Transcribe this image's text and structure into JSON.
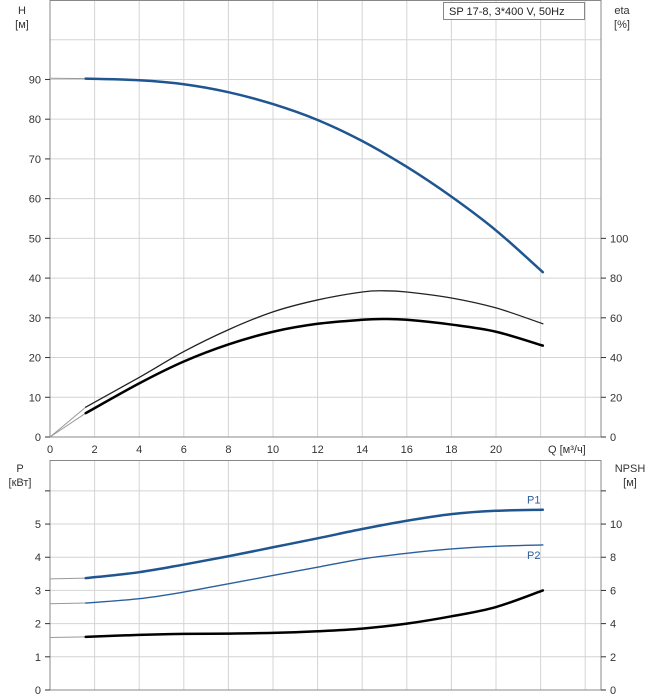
{
  "chart_data": [
    {
      "type": "line",
      "title": "SP 17-8, 3*400 V, 50Hz",
      "xlabel": "Q [м³/ч]",
      "ylabel": "H [м]",
      "ylabel_right": "eta [%]",
      "y_label_parts": [
        "H",
        "[м]"
      ],
      "y2_label_parts": [
        "eta",
        "[%]"
      ],
      "xlim": [
        0,
        24
      ],
      "ylim": [
        0,
        110
      ],
      "y2lim": [
        0,
        220
      ],
      "x_ticks": [
        0,
        2,
        4,
        6,
        8,
        10,
        12,
        14,
        16,
        18,
        20
      ],
      "y_ticks": [
        0,
        10,
        20,
        30,
        40,
        50,
        60,
        70,
        80,
        90
      ],
      "y2_ticks": [
        0,
        20,
        40,
        60,
        80,
        100
      ],
      "grid": true,
      "series": [
        {
          "name": "H",
          "axis": "left",
          "color": "#1f5590",
          "width": 2.5,
          "x": [
            1.6,
            4,
            6,
            8,
            10,
            12,
            14,
            16,
            18,
            20,
            22.1
          ],
          "y": [
            90.2,
            89.8,
            88.8,
            86.8,
            83.8,
            79.8,
            74.5,
            68,
            60.5,
            52,
            41.5
          ],
          "extension": {
            "x": [
              0,
              1.6
            ],
            "y": [
              90.3,
              90.2
            ]
          }
        },
        {
          "name": "eta pump",
          "axis": "right",
          "color": "#222222",
          "width": 1.3,
          "x": [
            1.6,
            4,
            6,
            8,
            10,
            12,
            14,
            15,
            16,
            18,
            20,
            22.1
          ],
          "y": [
            15,
            30,
            43,
            54,
            63,
            69,
            73,
            73.6,
            73,
            70,
            65,
            57
          ],
          "extension": {
            "x": [
              0,
              1.6
            ],
            "y": [
              0,
              15
            ]
          }
        },
        {
          "name": "eta total",
          "axis": "right",
          "color": "#000000",
          "width": 2.5,
          "x": [
            1.6,
            4,
            6,
            8,
            10,
            12,
            14,
            15,
            16,
            18,
            20,
            22.1
          ],
          "y": [
            12,
            27,
            38,
            46.6,
            53,
            57,
            59,
            59.4,
            59,
            56.6,
            53,
            46
          ],
          "extension": {
            "x": [
              0,
              1.6
            ],
            "y": [
              0,
              12
            ]
          }
        }
      ]
    },
    {
      "type": "line",
      "xlabel": "Q [м³/ч]",
      "ylabel": "P [кВт]",
      "ylabel_right": "NPSH [м]",
      "y_label_parts": [
        "P",
        "[кВт]"
      ],
      "y2_label_parts": [
        "NPSH",
        "[м]"
      ],
      "xlim": [
        0,
        24
      ],
      "ylim": [
        0,
        6.93
      ],
      "y2lim": [
        0,
        13.86
      ],
      "y_ticks": [
        0,
        1,
        2,
        3,
        4,
        5
      ],
      "y2_ticks": [
        0,
        2,
        4,
        6,
        8,
        10
      ],
      "grid": true,
      "series": [
        {
          "name": "P1",
          "axis": "left",
          "color": "#1f5590",
          "width": 2.5,
          "x": [
            1.6,
            4,
            6,
            8,
            10,
            12,
            14,
            16,
            18,
            20,
            22.1
          ],
          "y": [
            3.37,
            3.55,
            3.78,
            4.03,
            4.3,
            4.57,
            4.85,
            5.1,
            5.3,
            5.4,
            5.43
          ],
          "extension": {
            "x": [
              0,
              1.6
            ],
            "y": [
              3.35,
              3.37
            ]
          }
        },
        {
          "name": "P2",
          "axis": "left",
          "color": "#2a5f9e",
          "width": 1.4,
          "x": [
            1.6,
            4,
            6,
            8,
            10,
            12,
            14,
            16,
            18,
            20,
            22.1
          ],
          "y": [
            2.62,
            2.75,
            2.95,
            3.2,
            3.45,
            3.7,
            3.95,
            4.12,
            4.25,
            4.33,
            4.37
          ],
          "extension": {
            "x": [
              0,
              1.6
            ],
            "y": [
              2.6,
              2.62
            ]
          }
        },
        {
          "name": "NPSH",
          "axis": "right",
          "color": "#000000",
          "width": 2.5,
          "x": [
            1.6,
            4,
            6,
            8,
            10,
            12,
            14,
            16,
            18,
            20,
            22.1
          ],
          "y": [
            3.2,
            3.32,
            3.38,
            3.4,
            3.44,
            3.54,
            3.7,
            4.0,
            4.44,
            5.0,
            6.0
          ],
          "extension": {
            "x": [
              0,
              1.6
            ],
            "y": [
              3.16,
              3.2
            ]
          }
        }
      ]
    }
  ]
}
